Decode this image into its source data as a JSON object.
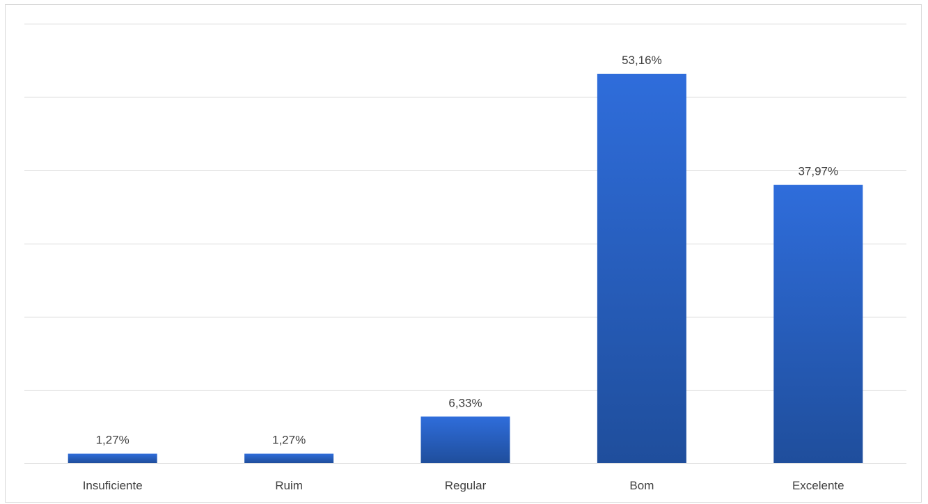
{
  "chart_data": {
    "type": "bar",
    "categories": [
      "Insuficiente",
      "Ruim",
      "Regular",
      "Bom",
      "Excelente"
    ],
    "values": [
      1.27,
      1.27,
      6.33,
      53.16,
      37.97
    ],
    "value_labels": [
      "1,27%",
      "1,27%",
      "6,33%",
      "53,16%",
      "37,97%"
    ],
    "ylim": [
      0,
      60
    ],
    "yticks": [
      0,
      10,
      20,
      30,
      40,
      50,
      60
    ],
    "grid": true,
    "legend": "none",
    "bar_color_top": "#2f6ddb",
    "bar_color_bottom": "#1f4e9c"
  }
}
